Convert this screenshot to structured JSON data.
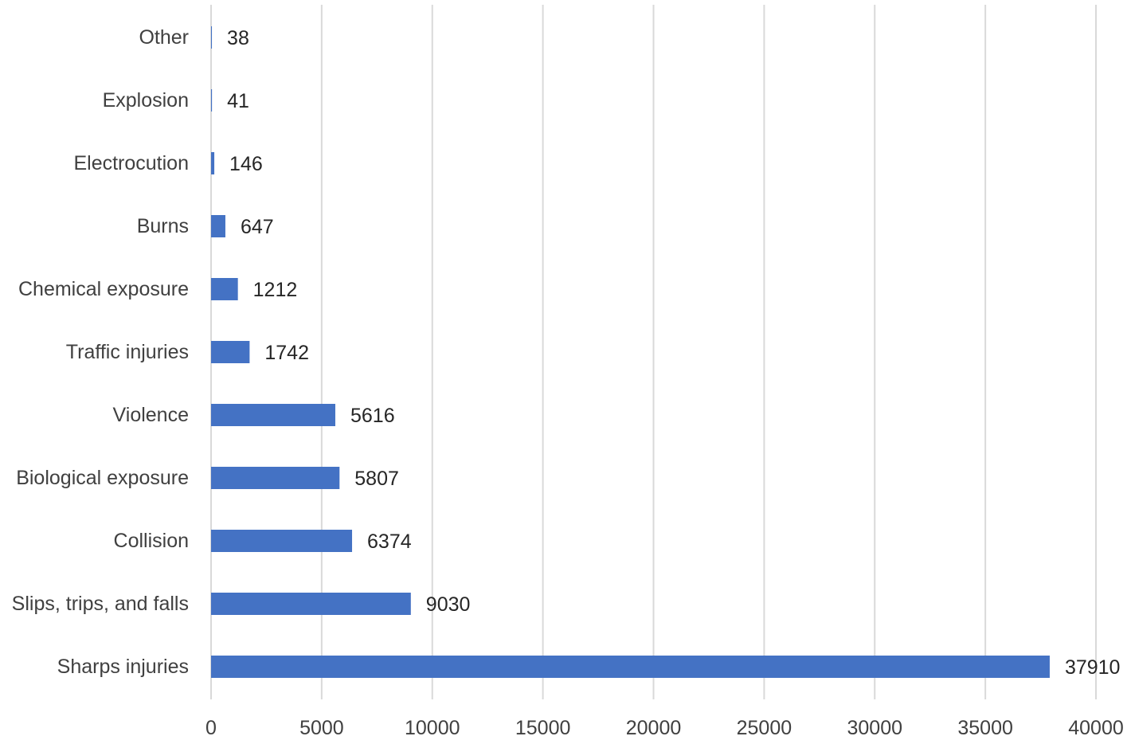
{
  "chart_data": {
    "type": "bar",
    "orientation": "horizontal",
    "title": "",
    "xlabel": "",
    "ylabel": "",
    "categories": [
      "Other",
      "Explosion",
      "Electrocution",
      "Burns",
      "Chemical exposure",
      "Traffic injuries",
      "Violence",
      "Biological exposure",
      "Collision",
      "Slips, trips, and falls",
      "Sharps injuries"
    ],
    "values": [
      38,
      41,
      146,
      647,
      1212,
      1742,
      5616,
      5807,
      6374,
      9030,
      37910
    ],
    "value_labels": [
      "38",
      "41",
      "146",
      "647",
      "1212",
      "1742",
      "5616",
      "5807",
      "6374",
      "9030",
      "37910"
    ],
    "xlim": [
      0,
      40000
    ],
    "x_ticks": [
      0,
      5000,
      10000,
      15000,
      20000,
      25000,
      30000,
      35000,
      40000
    ],
    "x_tick_labels": [
      "0",
      "5000",
      "10000",
      "15000",
      "20000",
      "25000",
      "30000",
      "35000",
      "40000"
    ],
    "grid": "vertical",
    "legend": "none",
    "colors": {
      "bar": "#4472c4",
      "grid": "#d9d9d9"
    }
  }
}
